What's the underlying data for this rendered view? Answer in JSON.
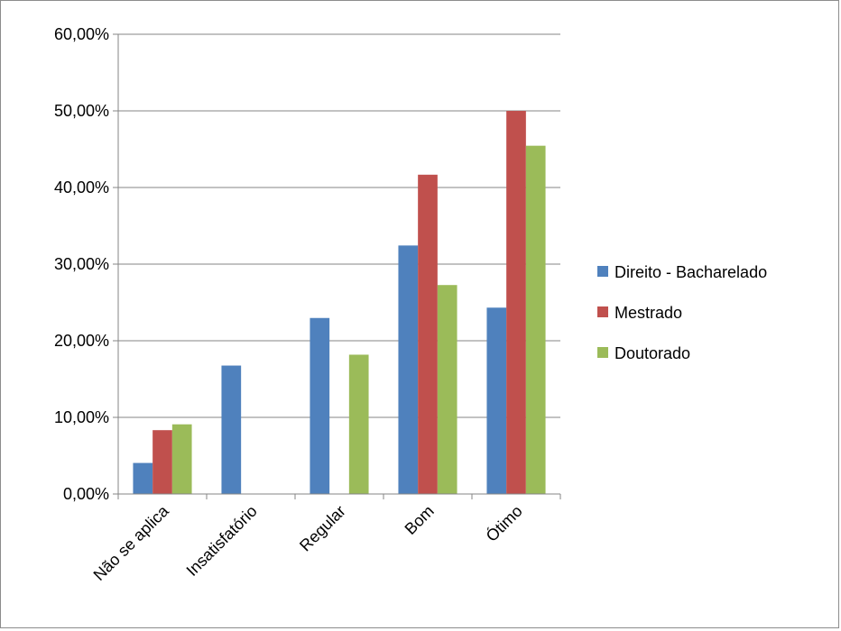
{
  "chart_data": {
    "type": "bar",
    "categories": [
      "Não se aplica",
      "Insatisfatório",
      "Regular",
      "Bom",
      "Ótimo"
    ],
    "series": [
      {
        "name": "Direito - Bacharelado",
        "color": "#4F81BD",
        "values": [
          4.05,
          16.76,
          22.97,
          32.43,
          24.32
        ]
      },
      {
        "name": "Mestrado",
        "color": "#C0504D",
        "values": [
          8.33,
          0,
          0,
          41.67,
          50.0
        ]
      },
      {
        "name": "Doutorado",
        "color": "#9BBB59",
        "values": [
          9.09,
          0,
          18.18,
          27.27,
          45.45
        ]
      }
    ],
    "y_ticks": [
      "0,00%",
      "10,00%",
      "20,00%",
      "30,00%",
      "40,00%",
      "50,00%",
      "60,00%"
    ],
    "ylim": [
      0,
      60
    ],
    "grid": true,
    "legend_position": "right",
    "title": "",
    "xlabel": "",
    "ylabel": ""
  }
}
